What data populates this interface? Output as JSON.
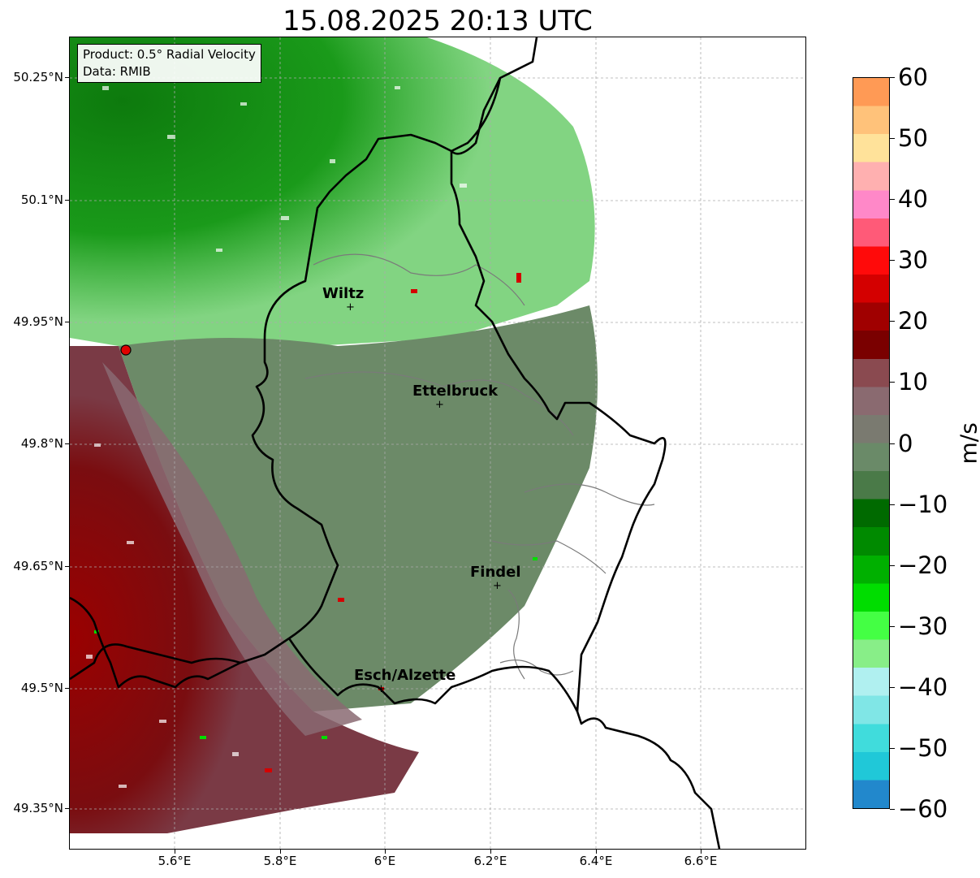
{
  "title": "15.08.2025 20:13 UTC",
  "info_box": {
    "product": "Product: 0.5° Radial Velocity",
    "data": "Data: RMIB"
  },
  "map": {
    "x_ticks": [
      "5.6°E",
      "5.8°E",
      "6°E",
      "6.2°E",
      "6.4°E",
      "6.6°E"
    ],
    "y_ticks": [
      "50.25°N",
      "50.1°N",
      "49.95°N",
      "49.8°N",
      "49.65°N",
      "49.5°N",
      "49.35°N"
    ],
    "extent": {
      "lon": [
        5.4,
        6.8
      ],
      "lat": [
        49.3,
        50.3
      ]
    },
    "cities": [
      {
        "name": "Wiltz",
        "lon": 5.93,
        "lat": 49.966
      },
      {
        "name": "Ettelbruck",
        "lon": 6.1,
        "lat": 49.847
      },
      {
        "name": "Findel",
        "lon": 6.21,
        "lat": 49.625
      },
      {
        "name": "Esch/Alzette",
        "lon": 5.99,
        "lat": 49.497
      }
    ],
    "radar_site": {
      "lon": 5.505,
      "lat": 49.914
    },
    "grid": true
  },
  "colorbar": {
    "label": "m/s",
    "min": -60,
    "max": 60,
    "ticks": [
      "60",
      "50",
      "40",
      "30",
      "20",
      "10",
      "0",
      "−10",
      "−20",
      "−30",
      "−40",
      "−50",
      "−60"
    ],
    "colors": [
      "#ff9a55",
      "#ffc27a",
      "#ffe29a",
      "#ffb0b0",
      "#ff88c8",
      "#ff5a78",
      "#ff0a0a",
      "#d40000",
      "#a00000",
      "#7a0000",
      "#8a4a50",
      "#8a6a70",
      "#7a7a70",
      "#6a8a68",
      "#4a7a48",
      "#006a00",
      "#008a00",
      "#00b000",
      "#00dd00",
      "#44ff44",
      "#88ee88",
      "#b0f0f0",
      "#80e6e6",
      "#40dcdc",
      "#20c8d8",
      "#2288cc"
    ]
  }
}
